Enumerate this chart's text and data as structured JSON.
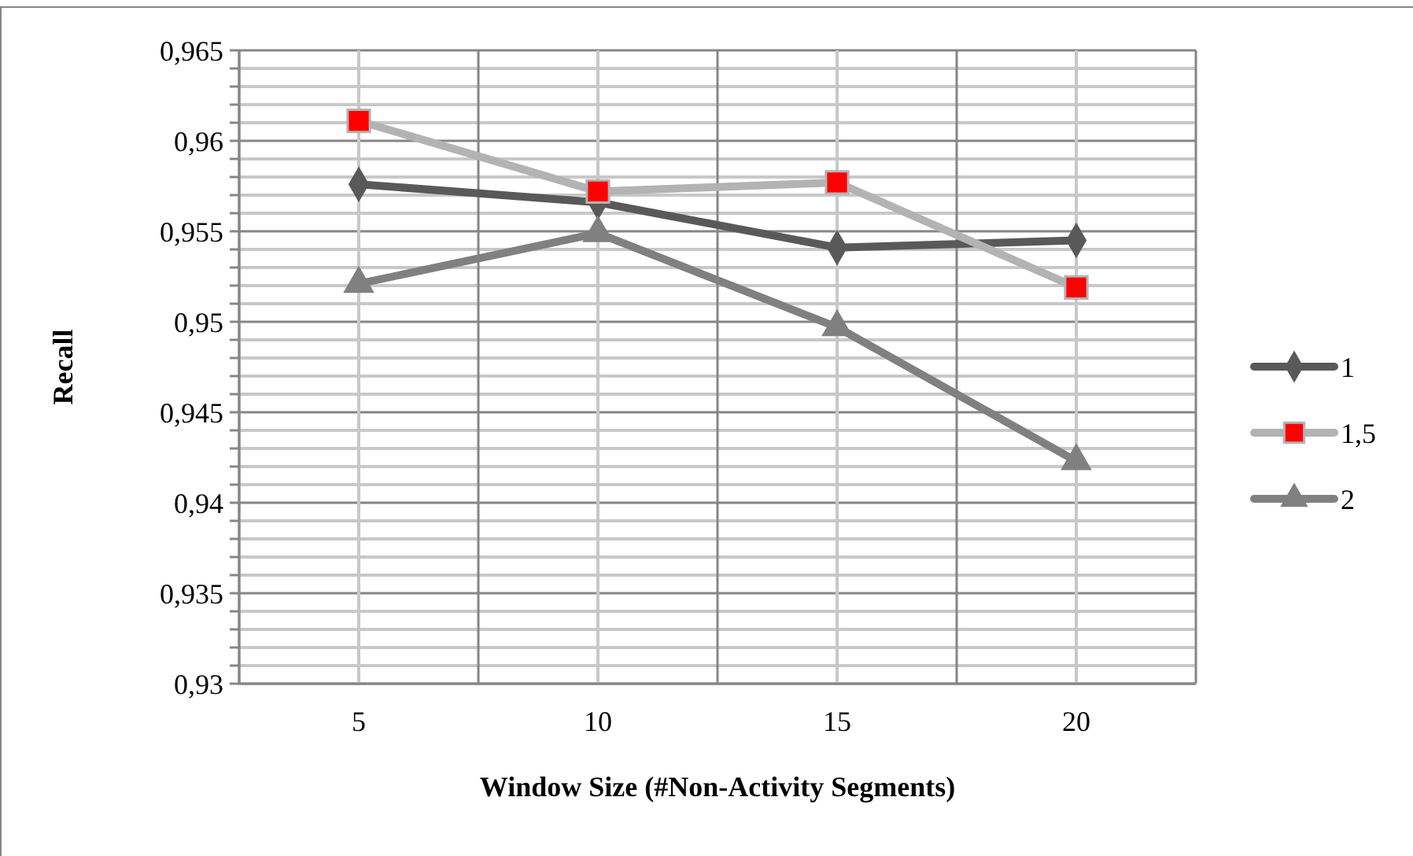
{
  "chart_data": {
    "type": "line",
    "xlabel": "Window Size (#Non-Activity Segments)",
    "ylabel": "Recall",
    "categories": [
      "5",
      "10",
      "15",
      "20"
    ],
    "series": [
      {
        "name": "1",
        "color": "#595959",
        "marker": "diamond",
        "values": [
          0.9576,
          0.9566,
          0.9541,
          0.9545
        ]
      },
      {
        "name": "1,5",
        "color": "#b3b3b3",
        "colors": [
          "#ff0000",
          "#ff0000",
          "#ff0000",
          "#ff0000"
        ],
        "marker": "square",
        "values": [
          0.9611,
          0.9572,
          0.9577,
          0.9519
        ]
      },
      {
        "name": "2",
        "color": "#808080",
        "marker": "triangle",
        "values": [
          0.9521,
          0.9549,
          0.9497,
          0.9423
        ]
      }
    ],
    "ylim": [
      0.93,
      0.965
    ],
    "yticks": [
      {
        "value": 0.93,
        "label": "0,93"
      },
      {
        "value": 0.931,
        "label": null
      },
      {
        "value": 0.932,
        "label": null
      },
      {
        "value": 0.933,
        "label": null
      },
      {
        "value": 0.934,
        "label": null
      },
      {
        "value": 0.935,
        "label": "0,935"
      },
      {
        "value": 0.936,
        "label": null
      },
      {
        "value": 0.937,
        "label": null
      },
      {
        "value": 0.938,
        "label": null
      },
      {
        "value": 0.939,
        "label": null
      },
      {
        "value": 0.94,
        "label": "0,94"
      },
      {
        "value": 0.941,
        "label": null
      },
      {
        "value": 0.942,
        "label": null
      },
      {
        "value": 0.943,
        "label": null
      },
      {
        "value": 0.944,
        "label": null
      },
      {
        "value": 0.945,
        "label": "0,945"
      },
      {
        "value": 0.946,
        "label": null
      },
      {
        "value": 0.947,
        "label": null
      },
      {
        "value": 0.948,
        "label": null
      },
      {
        "value": 0.949,
        "label": null
      },
      {
        "value": 0.95,
        "label": "0,95"
      },
      {
        "value": 0.951,
        "label": null
      },
      {
        "value": 0.952,
        "label": null
      },
      {
        "value": 0.953,
        "label": null
      },
      {
        "value": 0.954,
        "label": null
      },
      {
        "value": 0.955,
        "label": "0,955"
      },
      {
        "value": 0.956,
        "label": null
      },
      {
        "value": 0.957,
        "label": null
      },
      {
        "value": 0.958,
        "label": null
      },
      {
        "value": 0.959,
        "label": null
      },
      {
        "value": 0.96,
        "label": "0,96"
      },
      {
        "value": 0.961,
        "label": null
      },
      {
        "value": 0.962,
        "label": null
      },
      {
        "value": 0.963,
        "label": null
      },
      {
        "value": 0.964,
        "label": null
      },
      {
        "value": 0.965,
        "label": "0,965"
      }
    ],
    "grid": true,
    "legend": "right"
  }
}
